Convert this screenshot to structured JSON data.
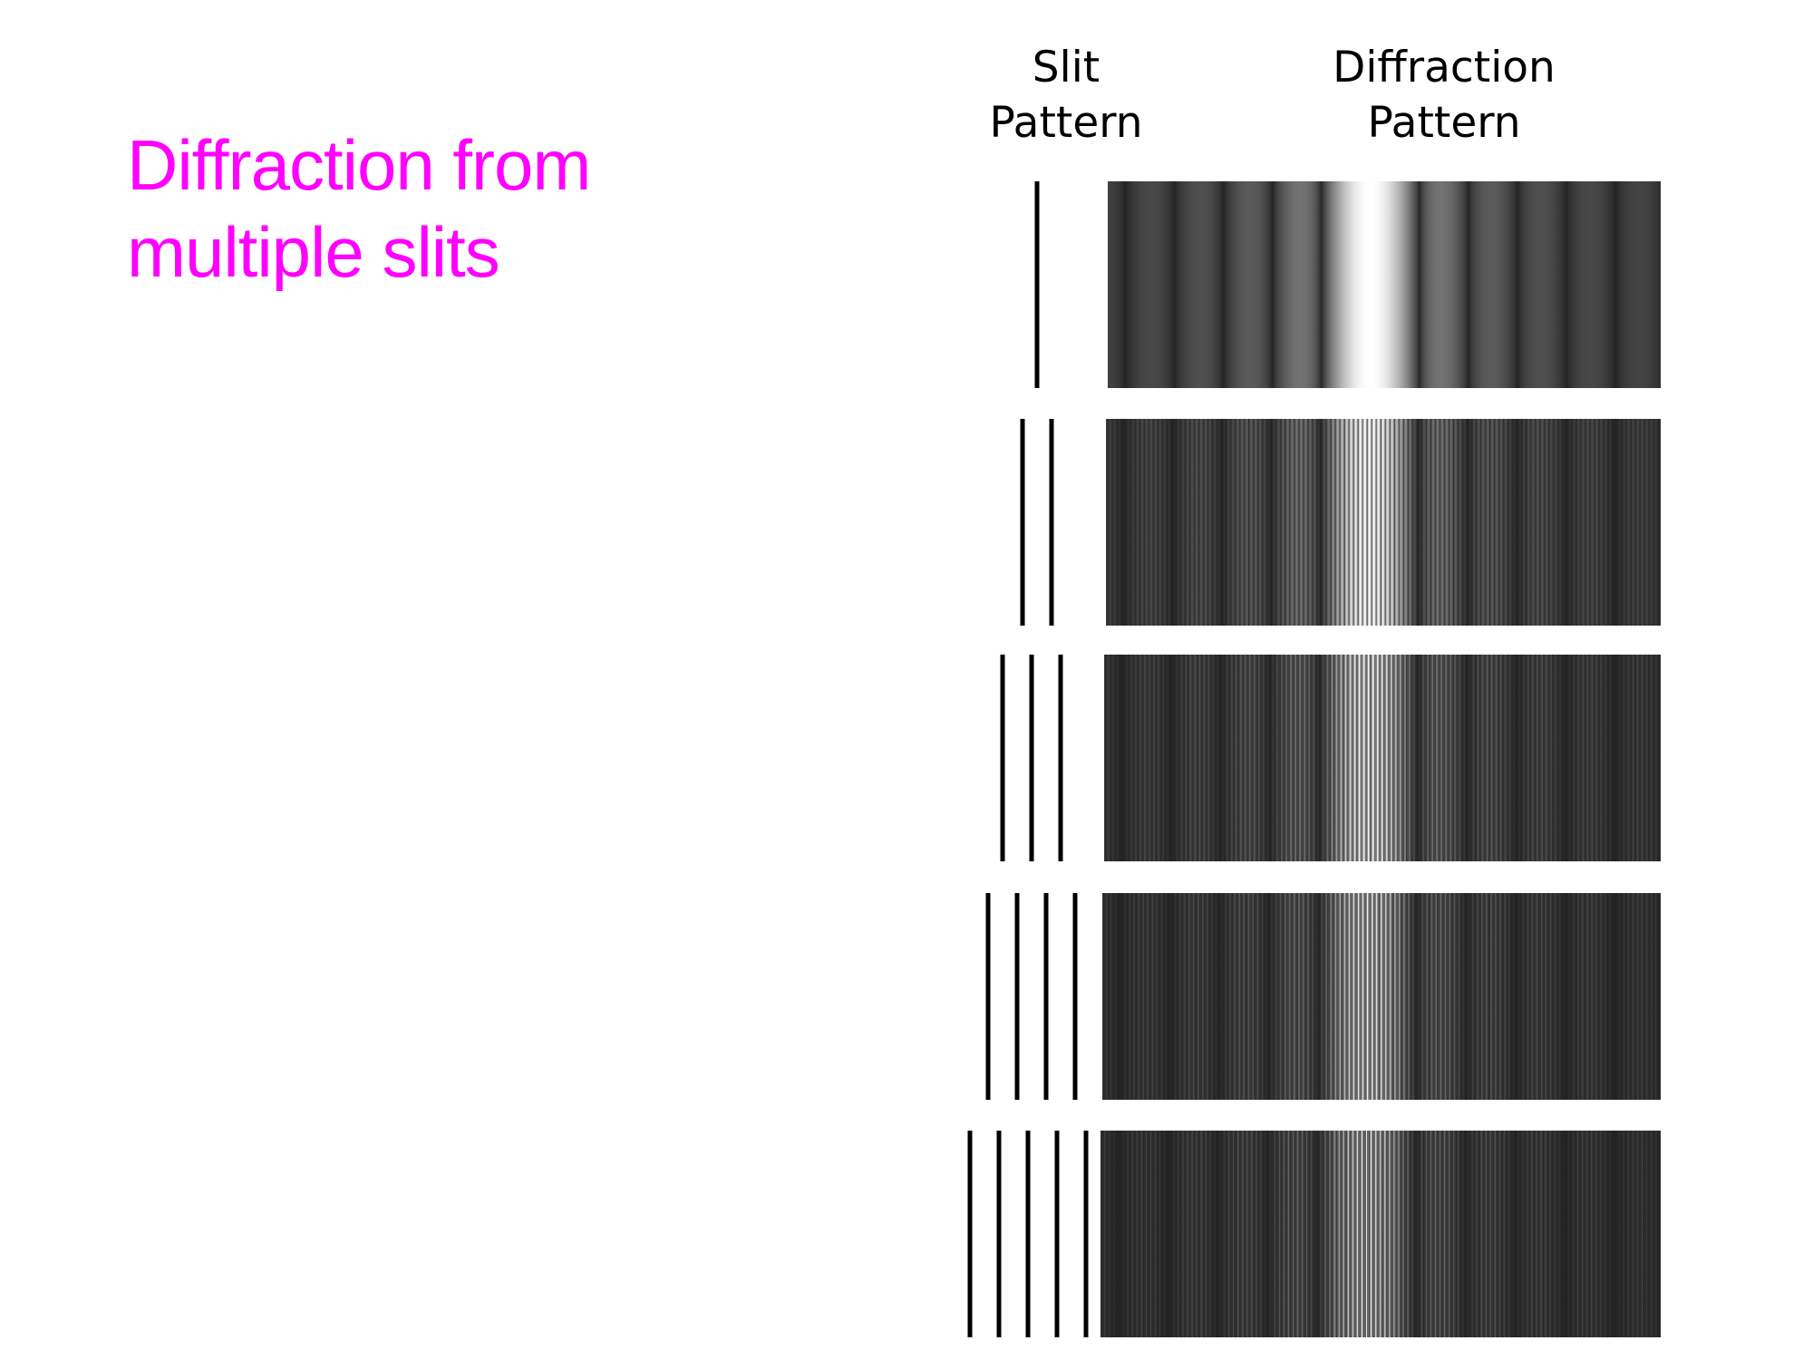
{
  "slide": {
    "title_lines": [
      "Diffraction from",
      "multiple slits"
    ],
    "title_color": "#ff00ff"
  },
  "labels": {
    "slit": [
      "Slit",
      "Pattern"
    ],
    "diffraction": [
      "Diffraction",
      "Pattern"
    ]
  },
  "rows": [
    {
      "slit_count": 1
    },
    {
      "slit_count": 2
    },
    {
      "slit_count": 3
    },
    {
      "slit_count": 4
    },
    {
      "slit_count": 5
    }
  ]
}
